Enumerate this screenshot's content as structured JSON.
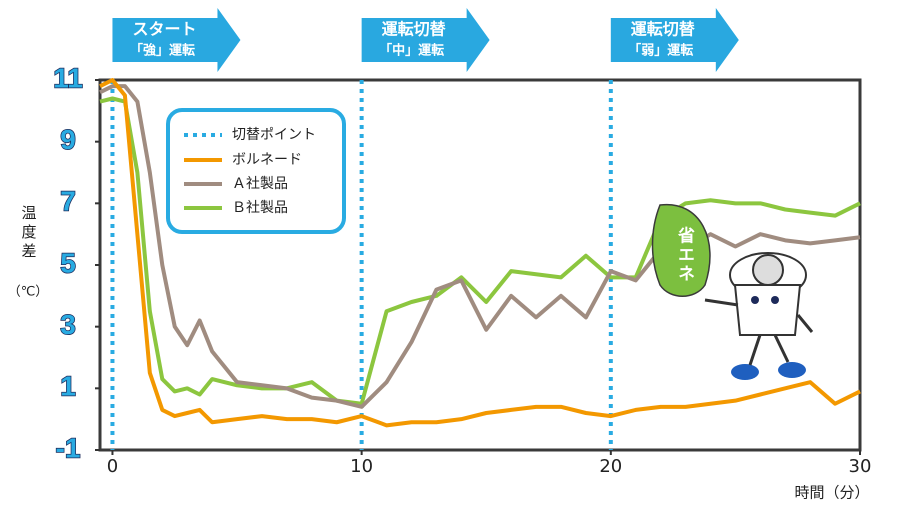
{
  "chart_data": {
    "type": "line",
    "annotations": [
      {
        "title": "スタート",
        "subtitle": "「強」運転"
      },
      {
        "title": "運転切替",
        "subtitle": "「中」運転"
      },
      {
        "title": "運転切替",
        "subtitle": "「弱」運転"
      }
    ],
    "switch_label": "切替ポイント",
    "switch_points": [
      0,
      10,
      20
    ],
    "switch_color": "#29abe2",
    "y_label": "温度差",
    "y_unit": "（℃）",
    "x_label": "時間（分）",
    "mascot_label": "省エネ",
    "xlim": [
      -0.5,
      30
    ],
    "xticks": [
      0,
      10,
      20,
      30
    ],
    "ylim": [
      -1,
      11
    ],
    "yticks": [
      -1,
      1,
      3,
      5,
      7,
      9,
      11
    ],
    "x": [
      -0.5,
      0,
      0.5,
      1,
      1.5,
      2,
      2.5,
      3,
      3.5,
      4,
      5,
      6,
      7,
      8,
      9,
      10,
      11,
      12,
      13,
      14,
      15,
      16,
      17,
      18,
      19,
      20,
      21,
      22,
      23,
      24,
      25,
      26,
      27,
      28,
      29,
      30
    ],
    "series": [
      {
        "name": "ボルネード",
        "color": "#f39800",
        "values": [
          10.8,
          11,
          10.5,
          6,
          1.5,
          0.3,
          0.1,
          0.2,
          0.3,
          -0.1,
          0,
          0.1,
          0,
          0,
          -0.1,
          0.1,
          -0.2,
          -0.1,
          -0.1,
          0,
          0.2,
          0.3,
          0.4,
          0.4,
          0.2,
          0.1,
          0.3,
          0.4,
          0.4,
          0.5,
          0.6,
          0.8,
          1,
          1.2,
          0.5,
          0.9
        ]
      },
      {
        "name": "Ａ社製品",
        "color": "#a08c80",
        "values": [
          10.6,
          10.8,
          10.8,
          10.3,
          8,
          5,
          3,
          2.4,
          3.2,
          2.2,
          1.2,
          1.1,
          1,
          0.7,
          0.6,
          0.4,
          1.2,
          2.5,
          4.2,
          4.5,
          2.9,
          4,
          3.3,
          4,
          3.3,
          4.8,
          4.5,
          5.5,
          5.5,
          6,
          5.6,
          6,
          5.8,
          5.7,
          5.8,
          5.9
        ]
      },
      {
        "name": "Ｂ社製品",
        "color": "#8cc63f",
        "values": [
          10.3,
          10.4,
          10.3,
          8,
          3.5,
          1.3,
          0.9,
          1,
          0.8,
          1.3,
          1.1,
          1,
          1,
          1.2,
          0.6,
          0.5,
          3.5,
          3.8,
          4,
          4.6,
          3.8,
          4.8,
          4.7,
          4.6,
          5.3,
          4.6,
          4.6,
          6.5,
          7,
          7.1,
          7,
          7,
          6.8,
          6.7,
          6.6,
          7
        ]
      }
    ]
  }
}
